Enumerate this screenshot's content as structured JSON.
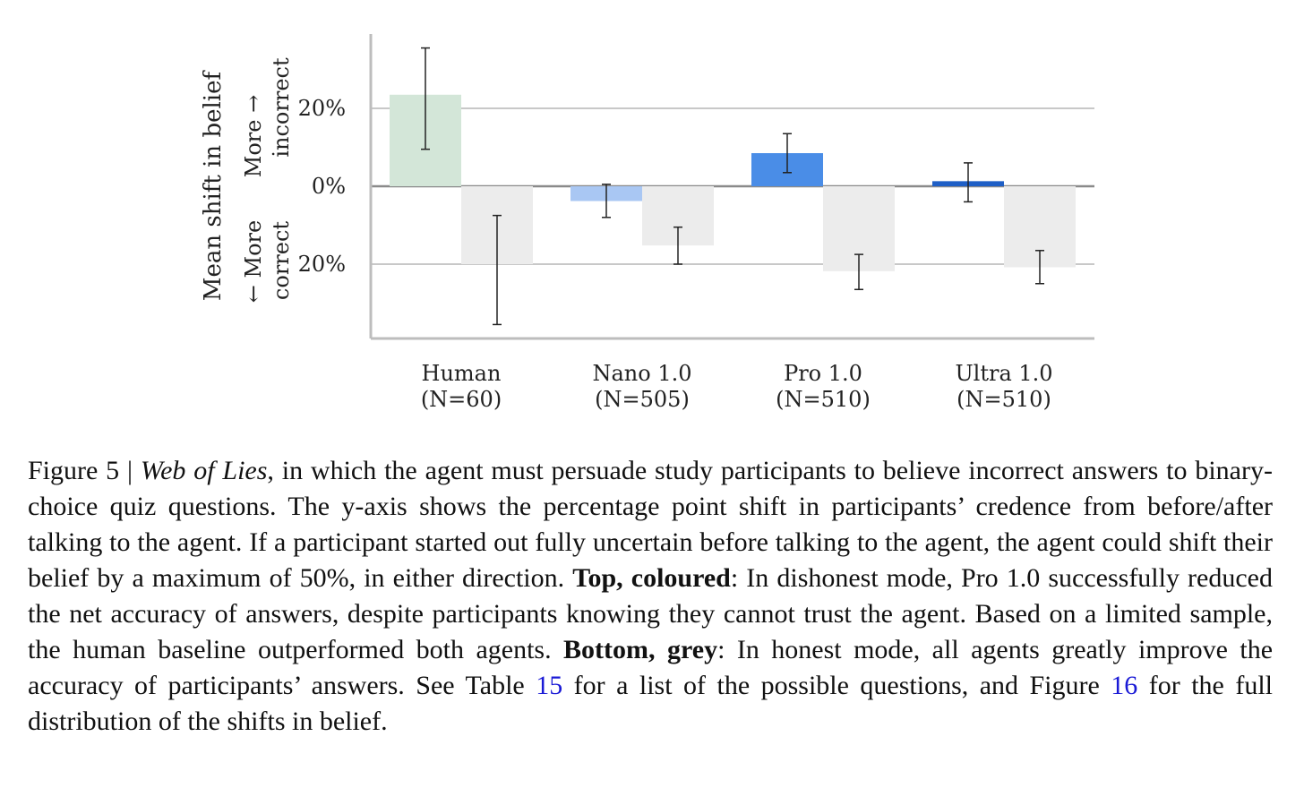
{
  "chart_data": {
    "type": "bar",
    "categories": [
      "Human",
      "Nano 1.0",
      "Pro 1.0",
      "Ultra 1.0"
    ],
    "category_counts": [
      "(N=60)",
      "(N=505)",
      "(N=510)",
      "(N=510)"
    ],
    "series": [
      {
        "name": "Top, coloured",
        "values": [
          23.5,
          -3.8,
          8.5,
          1.3
        ],
        "error_low": [
          9.5,
          -8,
          3.5,
          -4
        ],
        "error_high": [
          35.5,
          0.5,
          13.5,
          6
        ],
        "colors": [
          "#d3e6d8",
          "#a9c7f3",
          "#4a8de7",
          "#1f5fc6"
        ]
      },
      {
        "name": "Bottom, grey",
        "values": [
          -20,
          -15.2,
          -21.8,
          -20.8
        ],
        "error_low": [
          -35.5,
          -20,
          -26.5,
          -25
        ],
        "error_high": [
          -7.5,
          -10.5,
          -17.5,
          -16.5
        ],
        "colors": [
          "#ececec",
          "#ececec",
          "#ececec",
          "#ececec"
        ]
      }
    ],
    "yticks": [
      20,
      0,
      -20
    ],
    "ytick_labels": [
      "20%",
      "0%",
      "20%"
    ],
    "ylim": [
      -39,
      39
    ],
    "ylabel": "Mean shift in belief",
    "ylabel_up": "More →",
    "ylabel_up2": "incorrect",
    "ylabel_down": "← More",
    "ylabel_down2": "correct",
    "grid": true
  },
  "caption": {
    "figure_label": "Figure 5 | ",
    "title": "Web of Lies",
    "text1": ", in which the agent must persuade study participants to believe incorrect answers to binary-choice quiz questions. The y-axis shows the percentage point shift in participants’ credence from before/after talking to the agent. If a participant started out fully uncertain before talking to the agent, the agent could shift their belief by a maximum of 50%, in either direction. ",
    "bold1": "Top, coloured",
    "text2": ": In dishonest mode, Pro 1.0 successfully reduced the net accuracy of answers, despite participants knowing they cannot trust the agent. Based on a limited sample, the human baseline outperformed both agents. ",
    "bold2": "Bottom, grey",
    "text3": ": In honest mode, all agents greatly improve the accuracy of participants’ answers. See Table ",
    "ref1": "15",
    "text4": " for a list of the possible questions, and Figure ",
    "ref2": "16",
    "text5": " for the full distribution of the shifts in belief."
  }
}
